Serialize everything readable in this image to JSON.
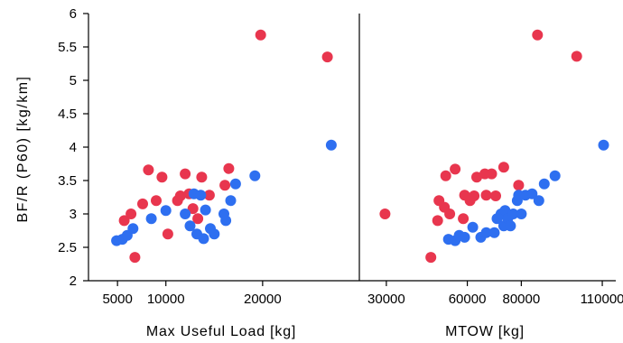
{
  "chart_data": {
    "type": "scatter",
    "ylabel": "BF/R (P60) [kg/km]",
    "ylim": [
      2,
      6
    ],
    "yticks": [
      2,
      2.5,
      3,
      3.5,
      4,
      4.5,
      5,
      5.5,
      6
    ],
    "ytick_labels": [
      "2",
      "2.5",
      "3",
      "3.5",
      "4",
      "4.5",
      "5",
      "5.5",
      "6"
    ],
    "colors": {
      "red": "#e8364e",
      "blue": "#2e6ff0"
    },
    "panels": [
      {
        "xlabel": "Max Useful Load [kg]",
        "xlim": [
          2000,
          30000
        ],
        "xticks": [
          5000,
          10000,
          20000
        ],
        "xtick_labels": [
          "5000",
          "10000",
          "20000"
        ],
        "series": [
          {
            "color": "red",
            "points": [
              [
                5700,
                2.9
              ],
              [
                6400,
                3.0
              ],
              [
                6800,
                2.35
              ],
              [
                7600,
                3.15
              ],
              [
                8200,
                3.66
              ],
              [
                9000,
                3.2
              ],
              [
                9600,
                3.55
              ],
              [
                10200,
                2.7
              ],
              [
                11200,
                3.2
              ],
              [
                11500,
                3.27
              ],
              [
                12000,
                3.6
              ],
              [
                12400,
                3.3
              ],
              [
                12800,
                3.08
              ],
              [
                13300,
                2.93
              ],
              [
                13700,
                3.55
              ],
              [
                14500,
                3.28
              ],
              [
                16100,
                3.43
              ],
              [
                16500,
                3.68
              ],
              [
                19800,
                5.68
              ],
              [
                26700,
                5.35
              ]
            ]
          },
          {
            "color": "blue",
            "points": [
              [
                4900,
                2.6
              ],
              [
                5500,
                2.62
              ],
              [
                6000,
                2.68
              ],
              [
                6600,
                2.78
              ],
              [
                8500,
                2.93
              ],
              [
                10000,
                3.05
              ],
              [
                12000,
                3.0
              ],
              [
                12500,
                2.82
              ],
              [
                12900,
                3.3
              ],
              [
                13200,
                2.7
              ],
              [
                13600,
                3.28
              ],
              [
                13900,
                2.63
              ],
              [
                14100,
                3.06
              ],
              [
                14600,
                2.78
              ],
              [
                15000,
                2.7
              ],
              [
                16000,
                3.0
              ],
              [
                16200,
                2.9
              ],
              [
                16700,
                3.2
              ],
              [
                17200,
                3.45
              ],
              [
                19200,
                3.57
              ],
              [
                27100,
                4.03
              ]
            ]
          }
        ]
      },
      {
        "xlabel": "MTOW [kg]",
        "xlim": [
          20000,
          115000
        ],
        "xticks": [
          30000,
          60000,
          80000,
          110000
        ],
        "xtick_labels": [
          "30000",
          "60000",
          "80000",
          "110000"
        ],
        "series": [
          {
            "color": "red",
            "points": [
              [
                29500,
                3.0
              ],
              [
                46500,
                2.35
              ],
              [
                49000,
                2.9
              ],
              [
                49500,
                3.2
              ],
              [
                51500,
                3.1
              ],
              [
                52000,
                3.57
              ],
              [
                53500,
                3.0
              ],
              [
                55500,
                3.67
              ],
              [
                58500,
                2.93
              ],
              [
                59000,
                3.28
              ],
              [
                61000,
                3.2
              ],
              [
                62500,
                3.27
              ],
              [
                63500,
                3.55
              ],
              [
                66500,
                3.6
              ],
              [
                67000,
                3.28
              ],
              [
                69000,
                3.6
              ],
              [
                70500,
                3.27
              ],
              [
                73500,
                3.7
              ],
              [
                79000,
                3.43
              ],
              [
                86000,
                5.68
              ],
              [
                100500,
                5.36
              ]
            ]
          },
          {
            "color": "blue",
            "points": [
              [
                53000,
                2.62
              ],
              [
                55500,
                2.6
              ],
              [
                57000,
                2.68
              ],
              [
                59000,
                2.65
              ],
              [
                62000,
                2.8
              ],
              [
                65000,
                2.65
              ],
              [
                67000,
                2.72
              ],
              [
                70000,
                2.72
              ],
              [
                71000,
                2.93
              ],
              [
                72500,
                3.0
              ],
              [
                73500,
                2.82
              ],
              [
                74000,
                3.05
              ],
              [
                75000,
                2.93
              ],
              [
                76000,
                2.82
              ],
              [
                77000,
                3.0
              ],
              [
                78500,
                3.2
              ],
              [
                79000,
                3.28
              ],
              [
                80000,
                3.0
              ],
              [
                81500,
                3.28
              ],
              [
                84000,
                3.3
              ],
              [
                86500,
                3.2
              ],
              [
                88500,
                3.45
              ],
              [
                92500,
                3.57
              ],
              [
                110500,
                4.03
              ]
            ]
          }
        ]
      }
    ]
  }
}
